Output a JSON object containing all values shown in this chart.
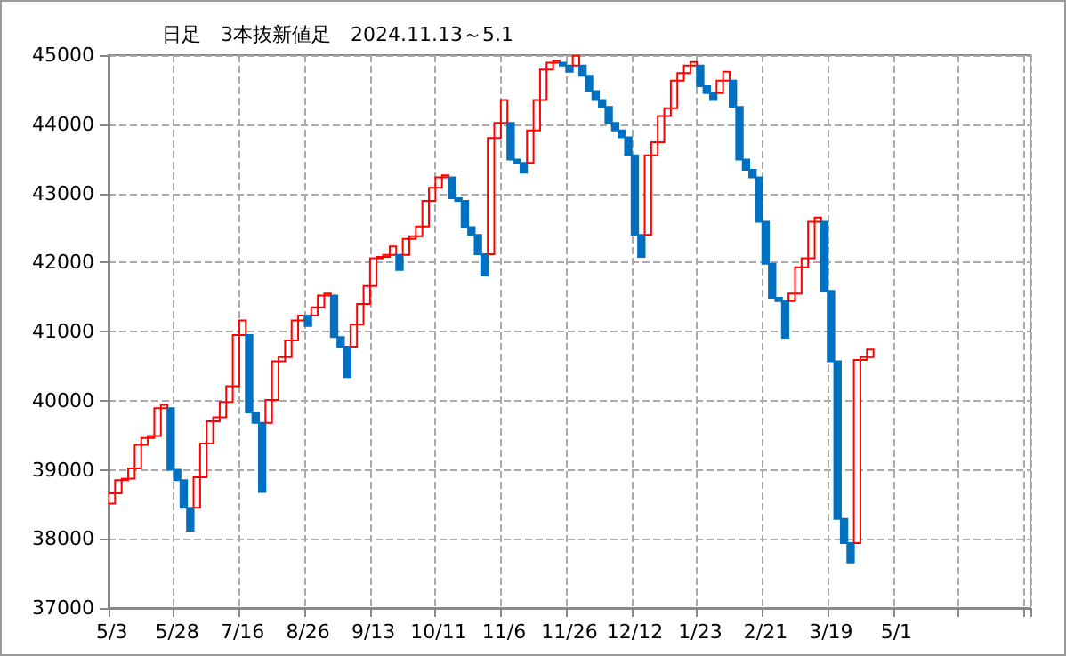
{
  "chart_data": {
    "type": "bar",
    "title": "日足　3本抜新値足　2024.11.13～5.1",
    "categories": [
      "5/3",
      null,
      null,
      null,
      null,
      null,
      null,
      null,
      null,
      null,
      "5/28",
      null,
      null,
      null,
      null,
      null,
      null,
      null,
      null,
      null,
      "7/16",
      null,
      null,
      null,
      null,
      null,
      null,
      null,
      null,
      null,
      "8/26",
      null,
      null,
      null,
      null,
      null,
      null,
      null,
      null,
      null,
      "9/13",
      null,
      null,
      null,
      null,
      null,
      null,
      null,
      null,
      null,
      "10/11",
      null,
      null,
      null,
      null,
      null,
      null,
      null,
      null,
      null,
      "11/6",
      null,
      null,
      null,
      null,
      null,
      null,
      null,
      null,
      null,
      "11/26",
      null,
      null,
      null,
      null,
      null,
      null,
      null,
      null,
      null,
      "12/12",
      null,
      null,
      null,
      null,
      null,
      null,
      null,
      null,
      null,
      "1/23",
      null,
      null,
      null,
      null,
      null,
      null,
      null,
      null,
      null,
      "2/21",
      null,
      null,
      null,
      null,
      null,
      null,
      null,
      null,
      null,
      "3/19",
      null,
      null,
      null,
      null,
      null,
      null,
      null,
      null,
      null,
      "5/1",
      null,
      null,
      null,
      null,
      null,
      null,
      null,
      null,
      null,
      null,
      null,
      null,
      null,
      null,
      null,
      null,
      null,
      null,
      null,
      null
    ],
    "base": [
      38510,
      38660,
      38850,
      38870,
      39020,
      39360,
      39460,
      39490,
      39890,
      39890,
      39000,
      38850,
      38450,
      38450,
      38890,
      39380,
      39700,
      39760,
      39980,
      40210,
      40950,
      40950,
      39830,
      39680,
      39680,
      40010,
      40570,
      40630,
      40870,
      41160,
      41230,
      41230,
      41350,
      41520,
      41520,
      40920,
      40780,
      40780,
      41100,
      41400,
      41660,
      42060,
      42080,
      42110,
      42110,
      42110,
      42340,
      42380,
      42520,
      42890,
      43080,
      43230,
      43230,
      42930,
      42890,
      42510,
      42400,
      42120,
      42120,
      43800,
      44020,
      44020,
      43490,
      43440,
      43440,
      43910,
      44350,
      44790,
      44890,
      44890,
      44850,
      44850,
      44850,
      44700,
      44480,
      44350,
      44250,
      44020,
      43910,
      43810,
      43550,
      42400,
      42400,
      43550,
      43740,
      44120,
      44230,
      44630,
      44740,
      44850,
      44850,
      44550,
      44450,
      44450,
      44630,
      44630,
      44250,
      43490,
      43340,
      43230,
      42590,
      41980,
      41490,
      41440,
      41440,
      41550,
      41930,
      42060,
      42590,
      42590,
      41590,
      40570,
      38290,
      37940,
      37940,
      40590,
      40630,
      null,
      null,
      null,
      null,
      null,
      null,
      null,
      null,
      null,
      null,
      null,
      null,
      null,
      null,
      null,
      null,
      null,
      null,
      null,
      null,
      null,
      null,
      null,
      null
    ],
    "values": [
      150,
      190,
      20,
      150,
      340,
      100,
      30,
      400,
      50,
      -890,
      -150,
      -400,
      -330,
      440,
      490,
      320,
      60,
      220,
      230,
      740,
      210,
      -1120,
      -150,
      -1000,
      330,
      560,
      60,
      240,
      290,
      70,
      -150,
      120,
      170,
      30,
      -600,
      -140,
      -440,
      320,
      300,
      260,
      400,
      20,
      30,
      120,
      -220,
      230,
      40,
      140,
      370,
      190,
      150,
      30,
      -300,
      -40,
      -380,
      -110,
      -280,
      -310,
      1680,
      220,
      330,
      -530,
      -50,
      -140,
      470,
      440,
      440,
      100,
      30,
      -40,
      -90,
      140,
      -150,
      -220,
      -130,
      -100,
      -230,
      -110,
      -100,
      -260,
      -1150,
      -320,
      1150,
      190,
      380,
      110,
      400,
      110,
      110,
      50,
      -300,
      -100,
      -100,
      180,
      130,
      -380,
      -760,
      -150,
      -110,
      -640,
      -610,
      -490,
      -50,
      -530,
      110,
      380,
      130,
      530,
      60,
      -1000,
      -1020,
      -2280,
      -350,
      -280,
      2650,
      40,
      110,
      null,
      null,
      null,
      null,
      null,
      null,
      null,
      null,
      null,
      null,
      null,
      null,
      null,
      null,
      null,
      null,
      null,
      null,
      null,
      null,
      null,
      null,
      null,
      null
    ],
    "colors": [
      "#ff0000",
      "#ff0000",
      "#ff0000",
      "#ff0000",
      "#ff0000",
      "#ff0000",
      "#ff0000",
      "#ff0000",
      "#ff0000",
      "#0070c0",
      "#0070c0",
      "#0070c0",
      "#0070c0",
      "#ff0000",
      "#ff0000",
      "#ff0000",
      "#ff0000",
      "#ff0000",
      "#ff0000",
      "#ff0000",
      "#ff0000",
      "#0070c0",
      "#0070c0",
      "#0070c0",
      "#ff0000",
      "#ff0000",
      "#ff0000",
      "#ff0000",
      "#ff0000",
      "#ff0000",
      "#0070c0",
      "#ff0000",
      "#ff0000",
      "#ff0000",
      "#0070c0",
      "#0070c0",
      "#0070c0",
      "#ff0000",
      "#ff0000",
      "#ff0000",
      "#ff0000",
      "#ff0000",
      "#ff0000",
      "#ff0000",
      "#0070c0",
      "#ff0000",
      "#ff0000",
      "#ff0000",
      "#ff0000",
      "#ff0000",
      "#ff0000",
      "#ff0000",
      "#0070c0",
      "#0070c0",
      "#0070c0",
      "#0070c0",
      "#0070c0",
      "#0070c0",
      "#ff0000",
      "#ff0000",
      "#ff0000",
      "#0070c0",
      "#0070c0",
      "#0070c0",
      "#ff0000",
      "#ff0000",
      "#ff0000",
      "#ff0000",
      "#ff0000",
      "#0070c0",
      "#0070c0",
      "#ff0000",
      "#0070c0",
      "#0070c0",
      "#0070c0",
      "#0070c0",
      "#0070c0",
      "#0070c0",
      "#0070c0",
      "#0070c0",
      "#0070c0",
      "#0070c0",
      "#ff0000",
      "#ff0000",
      "#ff0000",
      "#ff0000",
      "#ff0000",
      "#ff0000",
      "#ff0000",
      "#ff0000",
      "#0070c0",
      "#0070c0",
      "#0070c0",
      "#ff0000",
      "#ff0000",
      "#0070c0",
      "#0070c0",
      "#0070c0",
      "#0070c0",
      "#0070c0",
      "#0070c0",
      "#0070c0",
      "#0070c0",
      "#0070c0",
      "#ff0000",
      "#ff0000",
      "#ff0000",
      "#ff0000",
      "#ff0000",
      "#0070c0",
      "#0070c0",
      "#0070c0",
      "#0070c0",
      "#0070c0",
      "#ff0000",
      "#ff0000",
      "#ff0000",
      null,
      null,
      null,
      null,
      null,
      null,
      null,
      null,
      null,
      null,
      null,
      null,
      null,
      null,
      null,
      null,
      null,
      null,
      null,
      null,
      null,
      null,
      null,
      null
    ],
    "ylim": [
      37000,
      45000
    ],
    "yticks": [
      37000,
      38000,
      39000,
      40000,
      41000,
      42000,
      43000,
      44000,
      45000
    ],
    "grid": true
  }
}
